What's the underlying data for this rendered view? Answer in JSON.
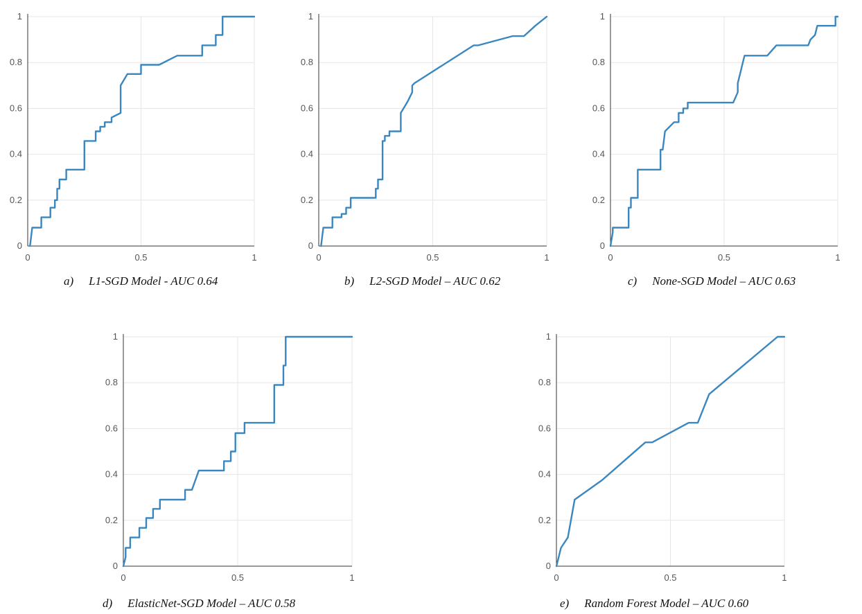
{
  "chart_data": [
    {
      "type": "line",
      "caption_letter": "a)",
      "caption": "L1-SGD Model - AUC 0.64",
      "xlim": [
        0,
        1
      ],
      "ylim": [
        0,
        1
      ],
      "xticks": [
        0,
        0.5,
        1
      ],
      "xtick_labels": [
        "0",
        "0.5",
        "1"
      ],
      "yticks": [
        0,
        0.2,
        0.4,
        0.6,
        0.8,
        1
      ],
      "ytick_labels": [
        "0",
        "0.2",
        "0.4",
        "0.6",
        "0.8",
        "1"
      ],
      "grid": true,
      "series": [
        {
          "color": "#3a87c0",
          "x": [
            0.01,
            0.02,
            0.03,
            0.06,
            0.06,
            0.1,
            0.1,
            0.12,
            0.12,
            0.13,
            0.13,
            0.14,
            0.14,
            0.17,
            0.17,
            0.25,
            0.25,
            0.3,
            0.3,
            0.32,
            0.32,
            0.34,
            0.34,
            0.37,
            0.37,
            0.41,
            0.41,
            0.44,
            0.44,
            0.5,
            0.5,
            0.58,
            0.66,
            0.77,
            0.77,
            0.8,
            0.8,
            0.83,
            0.83,
            0.86,
            0.86,
            1.0
          ],
          "y": [
            0.0,
            0.08,
            0.08,
            0.08,
            0.125,
            0.125,
            0.167,
            0.167,
            0.2,
            0.2,
            0.25,
            0.25,
            0.29,
            0.29,
            0.333,
            0.333,
            0.458,
            0.458,
            0.5,
            0.5,
            0.52,
            0.52,
            0.54,
            0.54,
            0.56,
            0.58,
            0.7,
            0.75,
            0.75,
            0.75,
            0.79,
            0.79,
            0.83,
            0.83,
            0.875,
            0.875,
            0.875,
            0.875,
            0.92,
            0.92,
            1.0,
            1.0
          ]
        }
      ]
    },
    {
      "type": "line",
      "caption_letter": "b)",
      "caption": "L2-SGD Model – AUC 0.62",
      "xlim": [
        0,
        1
      ],
      "ylim": [
        0,
        1
      ],
      "xticks": [
        0,
        0.5,
        1
      ],
      "xtick_labels": [
        "0",
        "0.5",
        "1"
      ],
      "yticks": [
        0,
        0.2,
        0.4,
        0.6,
        0.8,
        1
      ],
      "ytick_labels": [
        "0",
        "0.2",
        "0.4",
        "0.6",
        "0.8",
        "1"
      ],
      "grid": true,
      "series": [
        {
          "color": "#3a87c0",
          "x": [
            0.01,
            0.02,
            0.03,
            0.06,
            0.06,
            0.1,
            0.1,
            0.12,
            0.12,
            0.14,
            0.14,
            0.25,
            0.25,
            0.26,
            0.26,
            0.28,
            0.28,
            0.29,
            0.29,
            0.31,
            0.31,
            0.36,
            0.36,
            0.39,
            0.4,
            0.41,
            0.41,
            0.42,
            0.68,
            0.7,
            0.85,
            0.88,
            0.9,
            0.95,
            1.0
          ],
          "y": [
            0.0,
            0.08,
            0.08,
            0.08,
            0.125,
            0.125,
            0.14,
            0.14,
            0.167,
            0.167,
            0.21,
            0.21,
            0.25,
            0.25,
            0.29,
            0.29,
            0.458,
            0.458,
            0.48,
            0.48,
            0.5,
            0.5,
            0.58,
            0.63,
            0.65,
            0.67,
            0.7,
            0.71,
            0.875,
            0.875,
            0.915,
            0.915,
            0.915,
            0.96,
            1.0
          ]
        }
      ]
    },
    {
      "type": "line",
      "caption_letter": "c)",
      "caption": "None-SGD Model – AUC 0.63",
      "xlim": [
        0,
        1
      ],
      "ylim": [
        0,
        1
      ],
      "xticks": [
        0,
        0.5,
        1
      ],
      "xtick_labels": [
        "0",
        "0.5",
        "1"
      ],
      "yticks": [
        0,
        0.2,
        0.4,
        0.6,
        0.8,
        1
      ],
      "ytick_labels": [
        "0",
        "0.2",
        "0.4",
        "0.6",
        "0.8",
        "1"
      ],
      "grid": true,
      "series": [
        {
          "color": "#3a87c0",
          "x": [
            0.0,
            0.01,
            0.01,
            0.08,
            0.08,
            0.09,
            0.09,
            0.11,
            0.12,
            0.12,
            0.22,
            0.22,
            0.23,
            0.24,
            0.24,
            0.28,
            0.3,
            0.3,
            0.32,
            0.32,
            0.34,
            0.34,
            0.54,
            0.56,
            0.56,
            0.57,
            0.58,
            0.58,
            0.59,
            0.59,
            0.69,
            0.73,
            0.86,
            0.87,
            0.88,
            0.9,
            0.91,
            0.91,
            0.99,
            0.99,
            1.0
          ],
          "y": [
            0.0,
            0.06,
            0.08,
            0.08,
            0.167,
            0.167,
            0.21,
            0.21,
            0.21,
            0.333,
            0.333,
            0.42,
            0.42,
            0.5,
            0.5,
            0.54,
            0.54,
            0.58,
            0.58,
            0.6,
            0.6,
            0.625,
            0.625,
            0.67,
            0.71,
            0.75,
            0.79,
            0.79,
            0.83,
            0.83,
            0.83,
            0.875,
            0.875,
            0.875,
            0.9,
            0.92,
            0.96,
            0.96,
            0.96,
            1.0,
            1.0
          ]
        }
      ]
    },
    {
      "type": "line",
      "caption_letter": "d)",
      "caption": "ElasticNet-SGD Model – AUC 0.58",
      "xlim": [
        0,
        1
      ],
      "ylim": [
        0,
        1
      ],
      "xticks": [
        0,
        0.5,
        1
      ],
      "xtick_labels": [
        "0",
        "0.5",
        "1"
      ],
      "yticks": [
        0,
        0.2,
        0.4,
        0.6,
        0.8,
        1
      ],
      "ytick_labels": [
        "0",
        "0.2",
        "0.4",
        "0.6",
        "0.8",
        "1"
      ],
      "grid": true,
      "series": [
        {
          "color": "#3a87c0",
          "x": [
            0.0,
            0.01,
            0.01,
            0.02,
            0.03,
            0.03,
            0.07,
            0.07,
            0.1,
            0.1,
            0.13,
            0.13,
            0.16,
            0.16,
            0.21,
            0.21,
            0.27,
            0.27,
            0.3,
            0.3,
            0.33,
            0.42,
            0.44,
            0.44,
            0.47,
            0.47,
            0.49,
            0.49,
            0.53,
            0.53,
            0.66,
            0.66,
            0.7,
            0.7,
            0.71,
            0.71,
            0.72,
            1.0
          ],
          "y": [
            0.0,
            0.04,
            0.08,
            0.08,
            0.08,
            0.125,
            0.125,
            0.167,
            0.167,
            0.21,
            0.21,
            0.25,
            0.25,
            0.29,
            0.29,
            0.29,
            0.29,
            0.333,
            0.333,
            0.333,
            0.417,
            0.417,
            0.417,
            0.458,
            0.458,
            0.5,
            0.5,
            0.58,
            0.58,
            0.625,
            0.625,
            0.79,
            0.79,
            0.875,
            0.875,
            1.0,
            1.0,
            1.0
          ]
        }
      ]
    },
    {
      "type": "line",
      "caption_letter": "e)",
      "caption": "Random Forest Model – AUC 0.60",
      "xlim": [
        0,
        1
      ],
      "ylim": [
        0,
        1
      ],
      "xticks": [
        0,
        0.5,
        1
      ],
      "xtick_labels": [
        "0",
        "0.5",
        "1"
      ],
      "yticks": [
        0,
        0.2,
        0.4,
        0.6,
        0.8,
        1
      ],
      "ytick_labels": [
        "0",
        "0.2",
        "0.4",
        "0.6",
        "0.8",
        "1"
      ],
      "grid": true,
      "series": [
        {
          "color": "#3a87c0",
          "x": [
            0.0,
            0.02,
            0.05,
            0.08,
            0.2,
            0.39,
            0.42,
            0.58,
            0.62,
            0.67,
            0.97,
            1.0
          ],
          "y": [
            0.0,
            0.08,
            0.125,
            0.29,
            0.375,
            0.54,
            0.54,
            0.625,
            0.625,
            0.75,
            1.0,
            1.0
          ]
        }
      ]
    }
  ]
}
